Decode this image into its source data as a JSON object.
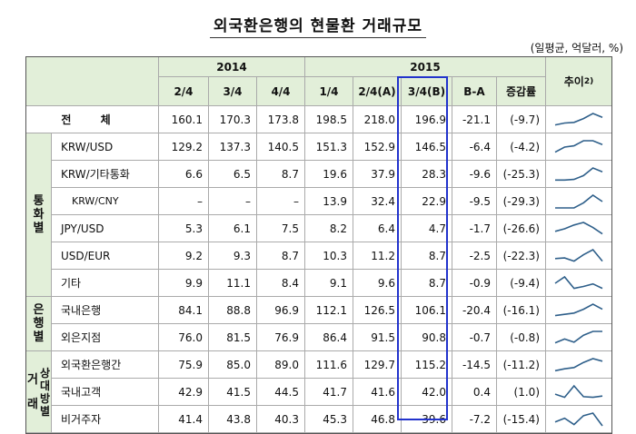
{
  "title": "외국환은행의 현물환 거래규모",
  "unit": "(일평균, 억달러, %)",
  "headers": {
    "year_2014": "2014",
    "year_2015": "2015",
    "trend": "추이",
    "trend_sup": "2)",
    "q": [
      "2/4",
      "3/4",
      "4/4",
      "1/4",
      "2/4(A)",
      "3/4(B)",
      "B-A",
      "증감률"
    ]
  },
  "categories": {
    "currency": [
      "통",
      "화",
      "별"
    ],
    "bank": [
      "은",
      "행",
      "별"
    ],
    "party_outer": [
      "거",
      "래"
    ],
    "party_inner": [
      "상",
      "대",
      "방",
      "별"
    ]
  },
  "rows": [
    {
      "label": "전 체",
      "values": [
        "160.1",
        "170.3",
        "173.8",
        "198.5",
        "218.0",
        "196.9",
        "-21.1",
        "(-9.7)"
      ],
      "trend": [
        0.1,
        0.25,
        0.3,
        0.6,
        1.0,
        0.7
      ]
    },
    {
      "label": "KRW/USD",
      "values": [
        "129.2",
        "137.3",
        "140.5",
        "151.3",
        "152.9",
        "146.5",
        "-6.4",
        "(-4.2)"
      ],
      "trend": [
        0.1,
        0.5,
        0.6,
        1.0,
        1.0,
        0.7
      ]
    },
    {
      "label": "KRW/기타통화",
      "values": [
        "6.6",
        "6.5",
        "8.7",
        "19.6",
        "37.9",
        "28.3",
        "-9.6",
        "(-25.3)"
      ],
      "trend": [
        0.05,
        0.05,
        0.1,
        0.4,
        1.0,
        0.7
      ]
    },
    {
      "label": "KRW/CNY",
      "values": [
        "–",
        "–",
        "–",
        "13.9",
        "32.4",
        "22.9",
        "-9.5",
        "(-29.3)"
      ],
      "trend": [
        0.0,
        0.0,
        0.0,
        0.4,
        1.0,
        0.5
      ]
    },
    {
      "label": "JPY/USD",
      "values": [
        "5.3",
        "6.1",
        "7.5",
        "8.2",
        "6.4",
        "4.7",
        "-1.7",
        "(-26.6)"
      ],
      "trend": [
        0.3,
        0.5,
        0.8,
        1.0,
        0.6,
        0.1
      ]
    },
    {
      "label": "USD/EUR",
      "values": [
        "9.2",
        "9.3",
        "8.7",
        "10.3",
        "11.2",
        "8.7",
        "-2.5",
        "(-22.3)"
      ],
      "trend": [
        0.3,
        0.35,
        0.1,
        0.6,
        1.0,
        0.1
      ]
    },
    {
      "label": "기타",
      "values": [
        "9.9",
        "11.1",
        "8.4",
        "9.1",
        "9.6",
        "8.7",
        "-0.9",
        "(-9.4)"
      ],
      "trend": [
        0.5,
        1.0,
        0.1,
        0.25,
        0.45,
        0.1
      ]
    },
    {
      "label": "국내은행",
      "values": [
        "84.1",
        "88.8",
        "96.9",
        "112.1",
        "126.5",
        "106.1",
        "-20.4",
        "(-16.1)"
      ],
      "trend": [
        0.1,
        0.2,
        0.3,
        0.6,
        1.0,
        0.6
      ]
    },
    {
      "label": "외은지점",
      "values": [
        "76.0",
        "81.5",
        "76.9",
        "86.4",
        "91.5",
        "90.8",
        "-0.7",
        "(-0.8)"
      ],
      "trend": [
        0.1,
        0.4,
        0.15,
        0.7,
        1.0,
        1.0
      ]
    },
    {
      "label": "외국환은행간",
      "values": [
        "75.9",
        "85.0",
        "89.0",
        "111.6",
        "129.7",
        "115.2",
        "-14.5",
        "(-11.2)"
      ],
      "trend": [
        0.05,
        0.2,
        0.3,
        0.7,
        1.0,
        0.8
      ]
    },
    {
      "label": "국내고객",
      "values": [
        "42.9",
        "41.5",
        "44.5",
        "41.7",
        "41.6",
        "42.0",
        "0.4",
        "(1.0)"
      ],
      "trend": [
        0.35,
        0.1,
        1.0,
        0.15,
        0.1,
        0.2
      ]
    },
    {
      "label": "비거주자",
      "values": [
        "41.4",
        "43.8",
        "40.3",
        "45.3",
        "46.8",
        "39.6",
        "-7.2",
        "(-15.4)"
      ],
      "trend": [
        0.3,
        0.6,
        0.1,
        0.8,
        1.0,
        0.0
      ]
    }
  ],
  "colors": {
    "header_bg": "#e2efd9",
    "highlight": "#2233cc",
    "trend_line": "#2e5f8a"
  }
}
